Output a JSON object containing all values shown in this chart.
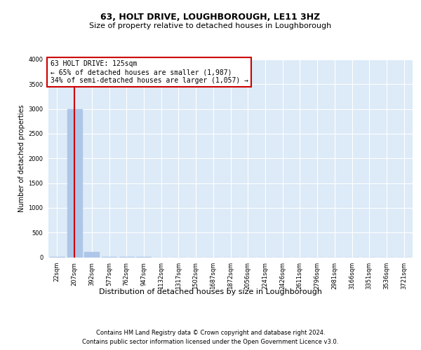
{
  "title1": "63, HOLT DRIVE, LOUGHBOROUGH, LE11 3HZ",
  "title2": "Size of property relative to detached houses in Loughborough",
  "xlabel": "Distribution of detached houses by size in Loughborough",
  "ylabel": "Number of detached properties",
  "footnote1": "Contains HM Land Registry data © Crown copyright and database right 2024.",
  "footnote2": "Contains public sector information licensed under the Open Government Licence v3.0.",
  "annotation_line1": "63 HOLT DRIVE: 125sqm",
  "annotation_line2": "← 65% of detached houses are smaller (1,987)",
  "annotation_line3": "34% of semi-detached houses are larger (1,057) →",
  "bar_color": "#aec6e8",
  "vline_color": "#cc0000",
  "annotation_box_edgecolor": "#cc0000",
  "annotation_box_facecolor": "#ffffff",
  "background_color": "#ddeaf7",
  "fig_background_color": "#ffffff",
  "categories": [
    "22sqm",
    "207sqm",
    "392sqm",
    "577sqm",
    "762sqm",
    "947sqm",
    "1132sqm",
    "1317sqm",
    "1502sqm",
    "1687sqm",
    "1872sqm",
    "2056sqm",
    "2241sqm",
    "2426sqm",
    "2611sqm",
    "2796sqm",
    "2981sqm",
    "3166sqm",
    "3351sqm",
    "3536sqm",
    "3721sqm"
  ],
  "values": [
    3,
    3000,
    100,
    2,
    1,
    1,
    0,
    0,
    0,
    0,
    0,
    0,
    0,
    0,
    0,
    0,
    0,
    0,
    0,
    0,
    0
  ],
  "ylim": [
    0,
    4000
  ],
  "yticks": [
    0,
    500,
    1000,
    1500,
    2000,
    2500,
    3000,
    3500,
    4000
  ],
  "vline_x_index": 1,
  "title1_fontsize": 9,
  "title2_fontsize": 8,
  "ylabel_fontsize": 7,
  "xlabel_fontsize": 8,
  "tick_fontsize": 6,
  "footnote_fontsize": 6,
  "annotation_fontsize": 7
}
